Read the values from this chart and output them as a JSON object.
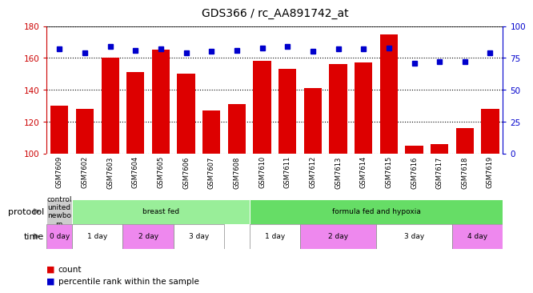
{
  "title": "GDS366 / rc_AA891742_at",
  "samples": [
    "GSM7609",
    "GSM7602",
    "GSM7603",
    "GSM7604",
    "GSM7605",
    "GSM7606",
    "GSM7607",
    "GSM7608",
    "GSM7610",
    "GSM7611",
    "GSM7612",
    "GSM7613",
    "GSM7614",
    "GSM7615",
    "GSM7616",
    "GSM7617",
    "GSM7618",
    "GSM7619"
  ],
  "counts": [
    130,
    128,
    160,
    151,
    165,
    150,
    127,
    131,
    158,
    153,
    141,
    156,
    157,
    175,
    105,
    106,
    116,
    128
  ],
  "percentiles": [
    82,
    79,
    84,
    81,
    82,
    79,
    80,
    81,
    83,
    84,
    80,
    82,
    82,
    83,
    71,
    72,
    72,
    79
  ],
  "ylim_left": [
    100,
    180
  ],
  "ylim_right": [
    0,
    100
  ],
  "yticks_left": [
    100,
    120,
    140,
    160,
    180
  ],
  "yticks_right": [
    0,
    25,
    50,
    75,
    100
  ],
  "bar_color": "#dd0000",
  "dot_color": "#0000cc",
  "bg_color": "#ffffff",
  "sample_label_bg": "#cccccc",
  "protocol_groups": [
    {
      "label": "control\nunited\nnewbo\nrn",
      "start": 0,
      "end": 1,
      "color": "#cccccc"
    },
    {
      "label": "breast fed",
      "start": 1,
      "end": 8,
      "color": "#99ee99"
    },
    {
      "label": "formula fed and hypoxia",
      "start": 8,
      "end": 18,
      "color": "#66dd66"
    }
  ],
  "time_groups": [
    {
      "label": "0 day",
      "start": 0,
      "end": 1,
      "color": "#ee88ee"
    },
    {
      "label": "1 day",
      "start": 1,
      "end": 3,
      "color": "#ffffff"
    },
    {
      "label": "2 day",
      "start": 3,
      "end": 5,
      "color": "#ee88ee"
    },
    {
      "label": "3 day",
      "start": 5,
      "end": 7,
      "color": "#ffffff"
    },
    {
      "label": "1 day",
      "start": 8,
      "end": 10,
      "color": "#ffffff"
    },
    {
      "label": "2 day",
      "start": 10,
      "end": 13,
      "color": "#ee88ee"
    },
    {
      "label": "3 day",
      "start": 13,
      "end": 16,
      "color": "#ffffff"
    },
    {
      "label": "4 day",
      "start": 16,
      "end": 18,
      "color": "#ee88ee"
    }
  ],
  "left_axis_color": "#cc0000",
  "right_axis_color": "#0000cc",
  "dotted_line_color": "#000000",
  "protocol_label": "protocol",
  "time_label": "time",
  "legend_count_label": "count",
  "legend_pct_label": "percentile rank within the sample"
}
